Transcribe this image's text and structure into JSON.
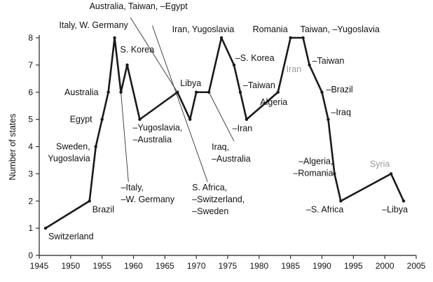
{
  "chart_data": {
    "type": "line",
    "ylabel": "Number of states",
    "xlim": [
      1945,
      2005
    ],
    "ylim": [
      0,
      8
    ],
    "x_ticks": [
      1945,
      1950,
      1955,
      1960,
      1965,
      1970,
      1975,
      1980,
      1985,
      1990,
      1995,
      2000,
      2005
    ],
    "y_ticks": [
      0,
      1,
      2,
      3,
      4,
      5,
      6,
      7,
      8
    ],
    "grid": false,
    "series": [
      {
        "points": [
          {
            "x": 1946,
            "y": 1
          },
          {
            "x": 1953,
            "y": 2
          },
          {
            "x": 1954,
            "y": 4
          },
          {
            "x": 1955,
            "y": 5
          },
          {
            "x": 1956,
            "y": 6
          },
          {
            "x": 1957,
            "y": 8
          },
          {
            "x": 1958,
            "y": 6
          },
          {
            "x": 1959,
            "y": 7
          },
          {
            "x": 1961,
            "y": 5
          },
          {
            "x": 1967,
            "y": 6
          },
          {
            "x": 1969,
            "y": 5
          },
          {
            "x": 1970,
            "y": 6
          },
          {
            "x": 1972,
            "y": 6
          },
          {
            "x": 1974,
            "y": 8
          },
          {
            "x": 1976,
            "y": 7
          },
          {
            "x": 1977,
            "y": 6
          },
          {
            "x": 1978,
            "y": 5
          },
          {
            "x": 1983,
            "y": 6
          },
          {
            "x": 1985,
            "y": 8
          },
          {
            "x": 1987,
            "y": 8
          },
          {
            "x": 1988,
            "y": 7
          },
          {
            "x": 1990,
            "y": 6
          },
          {
            "x": 1991,
            "y": 5
          },
          {
            "x": 1992,
            "y": 3
          },
          {
            "x": 1993,
            "y": 2
          },
          {
            "x": 2001,
            "y": 3
          },
          {
            "x": 2003,
            "y": 2
          }
        ]
      }
    ],
    "annotations": [
      {
        "text": "Switzerland",
        "x": 1946,
        "y": 1,
        "lines": [
          "Switzerland"
        ],
        "anchor": "start",
        "dx": 4,
        "dy": 16
      },
      {
        "text": "Brazil",
        "x": 1953,
        "y": 2,
        "lines": [
          "Brazil"
        ],
        "anchor": "start",
        "dx": 4,
        "dy": 16
      },
      {
        "text": "Sweden, Yugoslavia",
        "x": 1954,
        "y": 4,
        "lines": [
          "Sweden,",
          "Yugoslavia"
        ],
        "anchor": "end",
        "dx": -8,
        "dy": 4
      },
      {
        "text": "Egypt",
        "x": 1955,
        "y": 5,
        "lines": [
          "Egypt"
        ],
        "anchor": "end",
        "dx": -14,
        "dy": 4
      },
      {
        "text": "Australia",
        "x": 1956,
        "y": 6,
        "lines": [
          "Australia"
        ],
        "anchor": "end",
        "dx": -14,
        "dy": 4
      },
      {
        "text": "Italy, W. Germany",
        "x": 1957,
        "y": 8,
        "lines": [
          "Italy, W. Germany"
        ],
        "anchor": "middle",
        "dx": -30,
        "dy": -14
      },
      {
        "text": "Australia, Taiwan, –Egypt",
        "x": 1957,
        "y": 8,
        "lines": [
          "Australia, Taiwan, –Egypt"
        ],
        "anchor": "start",
        "dx": -36,
        "dy": -41
      },
      {
        "text": "S. Korea",
        "x": 1959,
        "y": 7,
        "lines": [
          "S. Korea"
        ],
        "anchor": "start",
        "dx": -10,
        "dy": -18
      },
      {
        "text": "–Italy, –W. Germany",
        "x": 1958,
        "y": 6,
        "lines": [
          "–Italy,",
          "–W. Germany"
        ],
        "anchor": "start",
        "dx": 0,
        "dy": 140
      },
      {
        "text": "–Yugoslavia, –Australia",
        "x": 1961,
        "y": 5,
        "lines": [
          "–Yugoslavia,",
          "–Australia"
        ],
        "anchor": "start",
        "dx": -10,
        "dy": 16
      },
      {
        "text": "Libya",
        "x": 1967,
        "y": 6,
        "lines": [
          "Libya"
        ],
        "anchor": "start",
        "dx": 4,
        "dy": -9
      },
      {
        "text": "Iran, Yugoslavia",
        "x": 1974,
        "y": 8,
        "lines": [
          "Iran, Yugoslavia"
        ],
        "anchor": "middle",
        "dx": -26,
        "dy": -8
      },
      {
        "text": "–S. Korea",
        "x": 1976,
        "y": 7,
        "lines": [
          "–S. Korea"
        ],
        "anchor": "start",
        "dx": 2,
        "dy": -6
      },
      {
        "text": "–Taiwan",
        "x": 1977,
        "y": 6,
        "lines": [
          "–Taiwan"
        ],
        "anchor": "start",
        "dx": 4,
        "dy": -6
      },
      {
        "text": "–Iran",
        "x": 1978,
        "y": 5,
        "lines": [
          "–Iran"
        ],
        "anchor": "middle",
        "dx": -6,
        "dy": 17
      },
      {
        "text": "Iraq, –Australia",
        "x": 1972,
        "y": 6,
        "lines": [
          "Iraq,",
          "–Australia"
        ],
        "anchor": "start",
        "dx": 4,
        "dy": 82
      },
      {
        "text": "S. Africa, –Switzerland, –Sweden",
        "x": 1970,
        "y": 6,
        "lines": [
          "S. Africa,",
          "–Switzerland,",
          "–Sweden"
        ],
        "anchor": "start",
        "dx": -6,
        "dy": 140
      },
      {
        "text": "Romania",
        "x": 1985,
        "y": 8,
        "lines": [
          "Romania"
        ],
        "anchor": "end",
        "dx": -4,
        "dy": -8
      },
      {
        "text": "Taiwan, –Yugoslavia",
        "x": 1987,
        "y": 8,
        "lines": [
          "Taiwan, –Yugoslavia"
        ],
        "anchor": "start",
        "dx": -4,
        "dy": -8
      },
      {
        "text": "Iran",
        "x": 1985,
        "y": 7,
        "lines": [
          "Iran"
        ],
        "anchor": "start",
        "dx": -6,
        "dy": 10,
        "color": "grey"
      },
      {
        "text": "–Taiwan",
        "x": 1988,
        "y": 7,
        "lines": [
          "–Taiwan"
        ],
        "anchor": "start",
        "dx": 4,
        "dy": -2
      },
      {
        "text": "Algeria",
        "x": 1983,
        "y": 6,
        "lines": [
          "Algeria"
        ],
        "anchor": "middle",
        "dx": -6,
        "dy": 18
      },
      {
        "text": "–Brazil",
        "x": 1990,
        "y": 6,
        "lines": [
          "–Brazil"
        ],
        "anchor": "start",
        "dx": 6,
        "dy": 0
      },
      {
        "text": "–Iraq",
        "x": 1991,
        "y": 5,
        "lines": [
          "–Iraq"
        ],
        "anchor": "start",
        "dx": 4,
        "dy": -6
      },
      {
        "text": "–Algeria, –Romania",
        "x": 1992,
        "y": 3,
        "lines": [
          "–Algeria,",
          "–Romania"
        ],
        "anchor": "end",
        "dx": -2,
        "dy": -14
      },
      {
        "text": "–S. Africa",
        "x": 1993,
        "y": 2,
        "lines": [
          "–S. Africa"
        ],
        "anchor": "end",
        "dx": 4,
        "dy": 16
      },
      {
        "text": "Syria",
        "x": 2001,
        "y": 3,
        "lines": [
          "Syria"
        ],
        "anchor": "middle",
        "dx": -16,
        "dy": -10,
        "color": "grey"
      },
      {
        "text": "–Libya",
        "x": 2003,
        "y": 2,
        "lines": [
          "–Libya"
        ],
        "anchor": "end",
        "dx": 6,
        "dy": 16
      }
    ],
    "leader_lines": [
      {
        "label": "Australia, Taiwan, –Egypt",
        "from": [
          1959.5,
          8.75
        ],
        "to": [
          1967,
          6
        ]
      },
      {
        "label": "–Italy, –W. Germany",
        "from": [
          1958,
          6
        ],
        "to": [
          1959.2,
          2.7
        ]
      },
      {
        "label": "Iraq, –Australia",
        "from": [
          1972,
          6
        ],
        "to": [
          1976,
          4.2
        ]
      },
      {
        "label": "S. Africa, –Switzerland, –Sweden",
        "from": [
          1963,
          8.45
        ],
        "to": [
          1971.8,
          2.7
        ]
      }
    ]
  }
}
